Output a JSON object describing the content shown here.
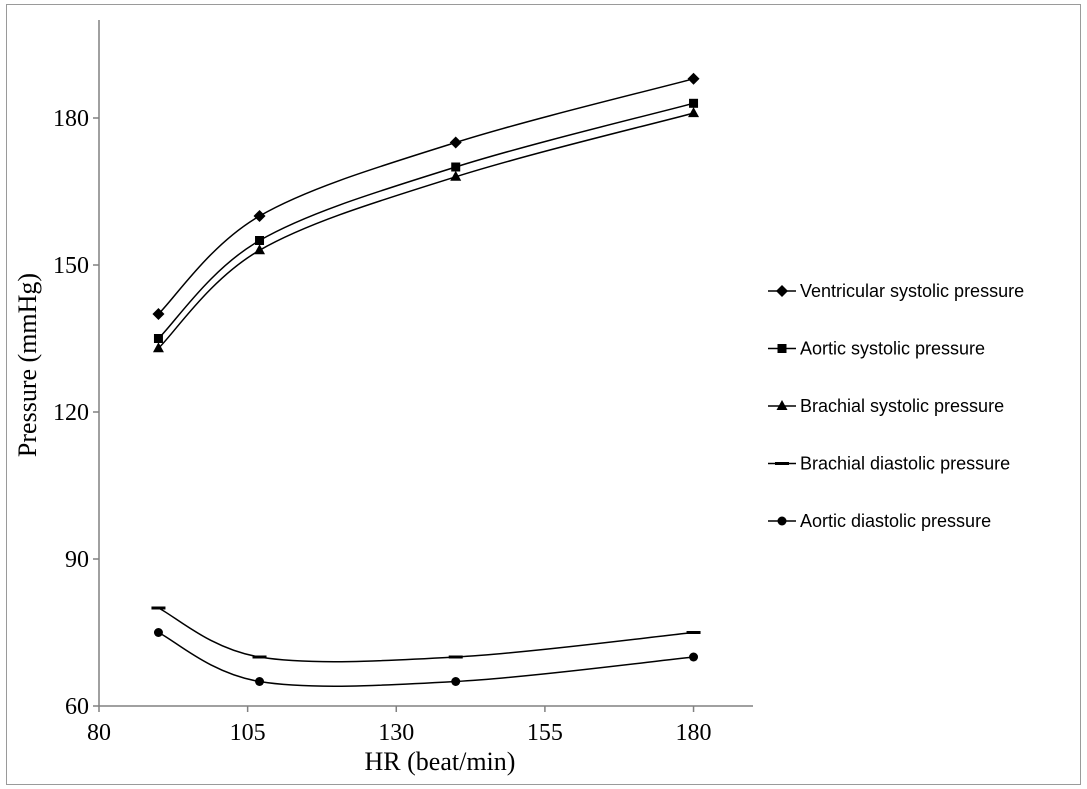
{
  "chart_data": {
    "type": "line",
    "xlabel": "HR (beat/min)",
    "ylabel": "Pressure (mmHg)",
    "xlim": [
      80,
      190
    ],
    "ylim": [
      60,
      200
    ],
    "x_ticks": [
      "80",
      "105",
      "130",
      "155",
      "180"
    ],
    "y_ticks": [
      "60",
      "90",
      "120",
      "150",
      "180"
    ],
    "grid": false,
    "legend_position": "right",
    "x": [
      90,
      107,
      140,
      180
    ],
    "series": [
      {
        "name": "Ventricular systolic pressure",
        "marker": "diamond",
        "values": [
          140,
          160,
          175,
          188
        ]
      },
      {
        "name": "Aortic systolic pressure",
        "marker": "square",
        "values": [
          135,
          155,
          170,
          183
        ]
      },
      {
        "name": "Brachial systolic pressure",
        "marker": "triangle",
        "values": [
          133,
          153,
          168,
          181
        ]
      },
      {
        "name": "Brachial diastolic pressure",
        "marker": "dash",
        "values": [
          80,
          70,
          70,
          75
        ]
      },
      {
        "name": "Aortic diastolic pressure",
        "marker": "circle",
        "values": [
          75,
          65,
          65,
          70
        ]
      }
    ],
    "colors": {
      "line": "#000000",
      "axis": "#808080",
      "text": "#000000"
    }
  }
}
